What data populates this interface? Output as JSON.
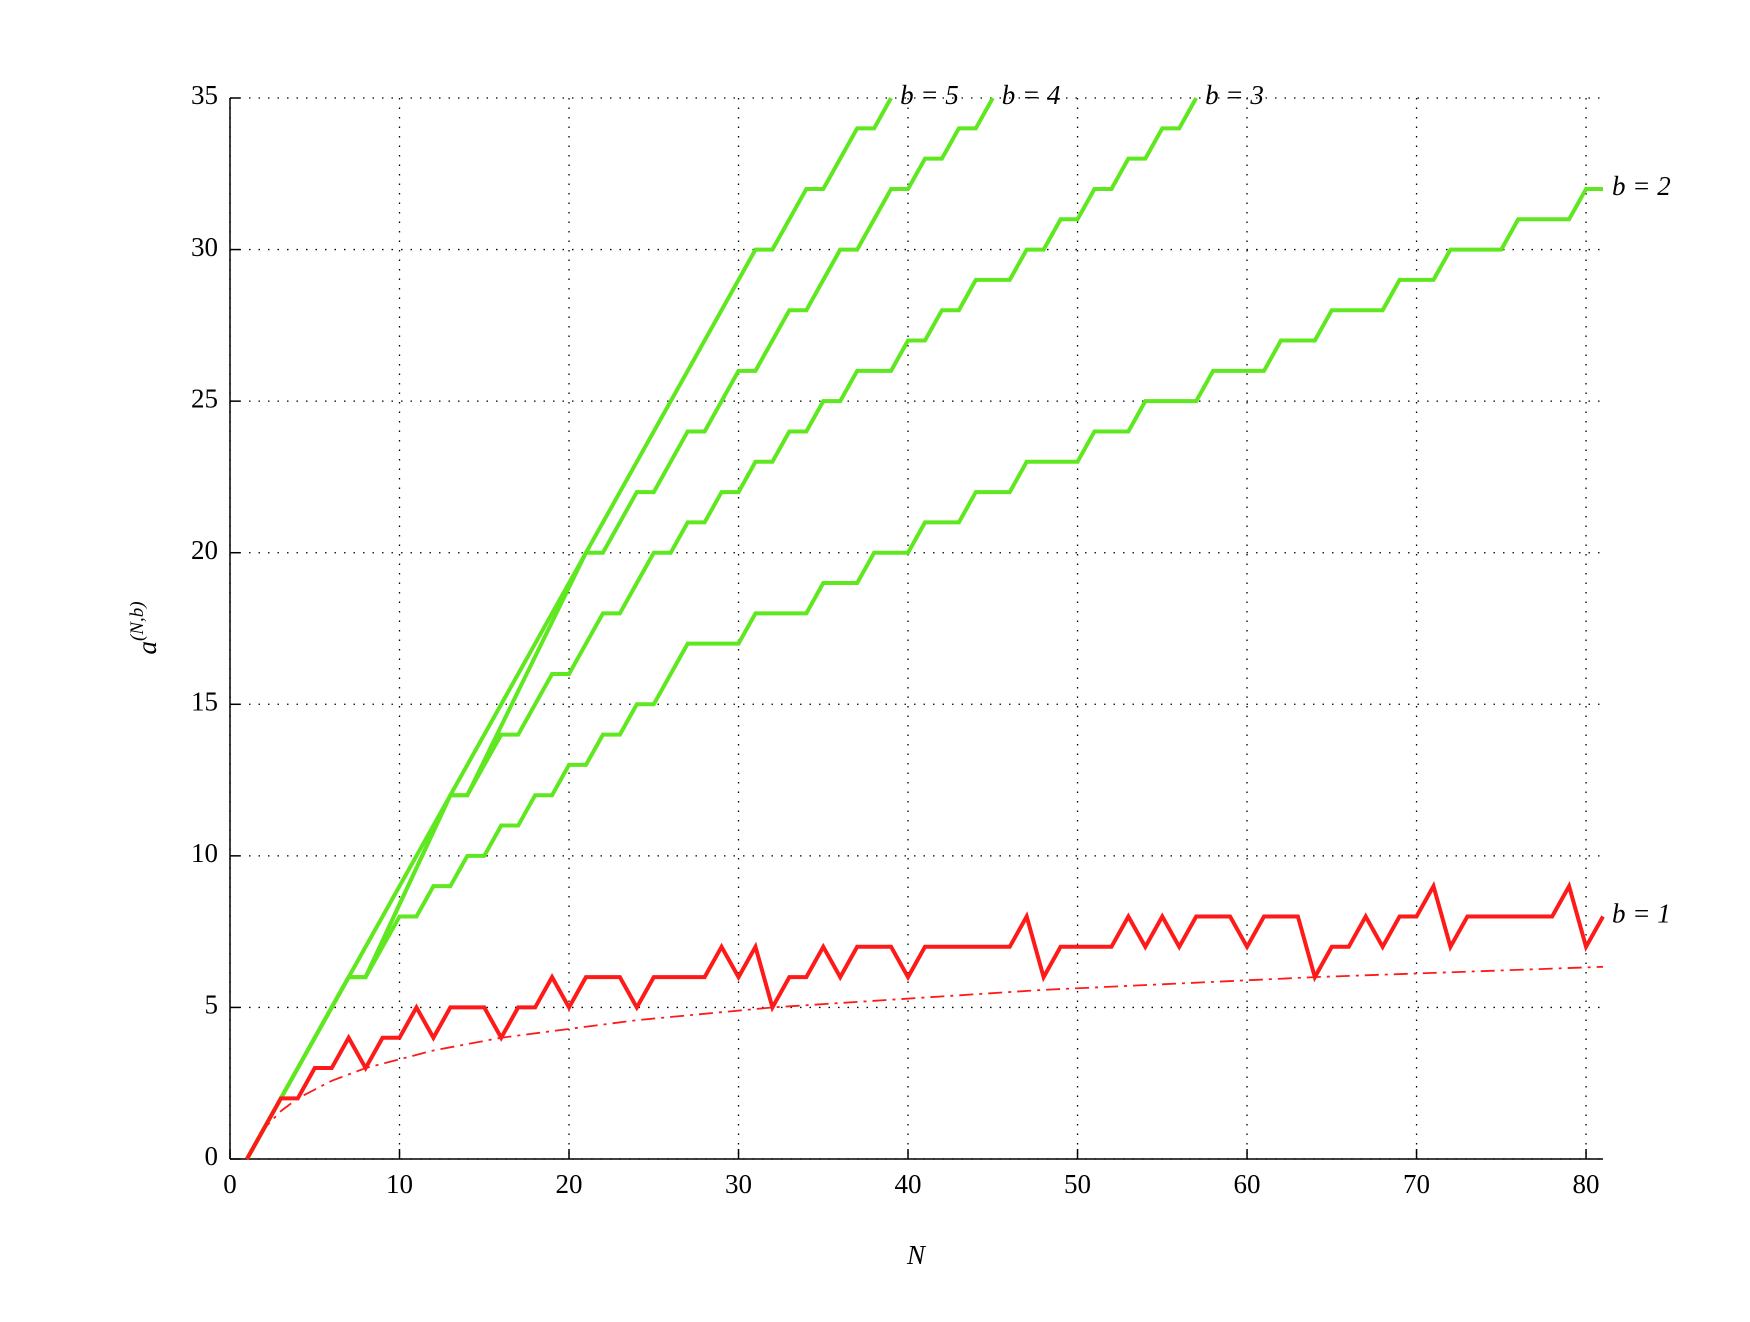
{
  "chart_data": {
    "type": "line",
    "xlabel": "N",
    "ylabel": "a",
    "ylabel_superscript": "(N,b)",
    "xlim": [
      0,
      81
    ],
    "ylim": [
      0,
      35
    ],
    "xticks": [
      0,
      10,
      20,
      30,
      40,
      50,
      60,
      70,
      80
    ],
    "yticks": [
      0,
      5,
      10,
      15,
      20,
      25,
      30,
      35
    ],
    "grid": true,
    "series": [
      {
        "name": "b = 5",
        "color": "#5fe81f",
        "style": "solid",
        "x": [
          1,
          31,
          32,
          34,
          35,
          37,
          38,
          39
        ],
        "values": [
          0,
          30,
          30,
          32,
          32,
          34,
          34,
          35
        ]
      },
      {
        "name": "b = 4",
        "color": "#5fe81f",
        "style": "solid",
        "x": [
          1,
          7,
          8,
          13,
          14,
          21,
          22,
          24,
          25,
          27,
          28,
          30,
          31,
          33,
          34,
          36,
          37,
          39,
          40,
          41,
          42,
          43,
          44,
          45
        ],
        "values": [
          0,
          6,
          6,
          12,
          12,
          20,
          20,
          22,
          22,
          24,
          24,
          26,
          26,
          28,
          28,
          30,
          30,
          32,
          32,
          33,
          33,
          34,
          34,
          35
        ]
      },
      {
        "name": "b = 3",
        "color": "#5fe81f",
        "style": "solid",
        "x": [
          1,
          7,
          8,
          13,
          14,
          16,
          17,
          19,
          20,
          22,
          23,
          25,
          26,
          27,
          28,
          29,
          30,
          31,
          32,
          33,
          34,
          35,
          36,
          37,
          39,
          40,
          41,
          42,
          43,
          44,
          46,
          47,
          48,
          49,
          50,
          51,
          52,
          53,
          54,
          55,
          56,
          57
        ],
        "values": [
          0,
          6,
          6,
          12,
          12,
          14,
          14,
          16,
          16,
          18,
          18,
          20,
          20,
          21,
          21,
          22,
          22,
          23,
          23,
          24,
          24,
          25,
          25,
          26,
          26,
          27,
          27,
          28,
          28,
          29,
          29,
          30,
          30,
          31,
          31,
          32,
          32,
          33,
          33,
          34,
          34,
          35
        ]
      },
      {
        "name": "b = 2",
        "color": "#5fe81f",
        "style": "solid",
        "x": [
          1,
          7,
          8,
          10,
          11,
          12,
          13,
          14,
          15,
          16,
          17,
          18,
          19,
          20,
          21,
          22,
          23,
          24,
          25,
          27,
          30,
          31,
          34,
          35,
          37,
          38,
          40,
          41,
          43,
          44,
          46,
          47,
          50,
          51,
          53,
          54,
          57,
          58,
          61,
          62,
          64,
          65,
          68,
          69,
          71,
          72,
          75,
          76,
          79,
          80,
          81
        ],
        "values": [
          0,
          6,
          6,
          8,
          8,
          9,
          9,
          10,
          10,
          11,
          11,
          12,
          12,
          13,
          13,
          14,
          14,
          15,
          15,
          17,
          17,
          18,
          18,
          19,
          19,
          20,
          20,
          21,
          21,
          22,
          22,
          23,
          23,
          24,
          24,
          25,
          25,
          26,
          26,
          27,
          27,
          28,
          28,
          29,
          29,
          30,
          30,
          31,
          31,
          32,
          32
        ]
      },
      {
        "name": "b = 1",
        "color": "#ff1a1a",
        "style": "solid",
        "x": [
          1,
          2,
          3,
          4,
          5,
          6,
          7,
          8,
          9,
          10,
          11,
          12,
          13,
          14,
          15,
          16,
          17,
          18,
          19,
          20,
          21,
          22,
          23,
          24,
          25,
          26,
          27,
          28,
          29,
          30,
          31,
          32,
          33,
          34,
          35,
          36,
          37,
          38,
          39,
          40,
          41,
          42,
          43,
          44,
          45,
          46,
          47,
          48,
          49,
          50,
          51,
          52,
          53,
          54,
          55,
          56,
          57,
          58,
          59,
          60,
          61,
          62,
          63,
          64,
          65,
          66,
          67,
          68,
          69,
          70,
          71,
          72,
          73,
          74,
          75,
          76,
          77,
          78,
          79,
          80,
          81
        ],
        "values": [
          0,
          1,
          2,
          2,
          3,
          3,
          4,
          3,
          4,
          4,
          5,
          4,
          5,
          5,
          5,
          4,
          5,
          5,
          6,
          5,
          6,
          6,
          6,
          5,
          6,
          6,
          6,
          6,
          7,
          6,
          7,
          5,
          6,
          6,
          7,
          6,
          7,
          7,
          7,
          6,
          7,
          7,
          7,
          7,
          7,
          7,
          8,
          6,
          7,
          7,
          7,
          7,
          8,
          7,
          8,
          7,
          8,
          8,
          8,
          7,
          8,
          8,
          8,
          6,
          7,
          7,
          8,
          7,
          8,
          8,
          9,
          7,
          8,
          8,
          8,
          8,
          8,
          8,
          9,
          7,
          8
        ]
      },
      {
        "color": "#ff1a1a",
        "style": "dash-dot",
        "x": [
          1,
          2,
          3,
          4,
          6,
          8,
          12,
          16,
          24,
          32,
          48,
          64,
          81
        ],
        "values": [
          0,
          1,
          1.58,
          2,
          2.58,
          3,
          3.58,
          4,
          4.58,
          5,
          5.58,
          6,
          6.34
        ]
      }
    ]
  }
}
